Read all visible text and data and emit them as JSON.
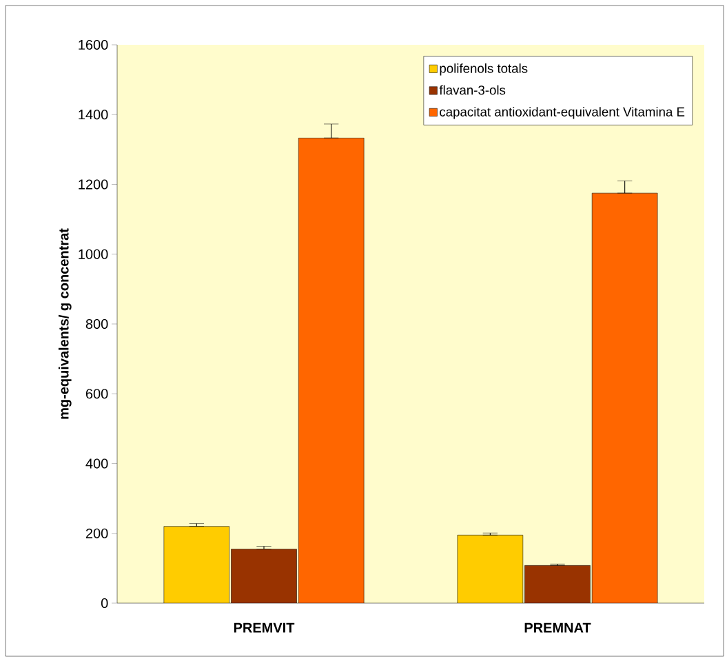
{
  "chart_data": {
    "type": "bar",
    "ylabel": "mg-equivalents/ g concentrat",
    "categories": [
      "PREMVIT",
      "PREMNAT"
    ],
    "series": [
      {
        "name": "polifenols totals",
        "color": "#ffcc00",
        "values": [
          220,
          195
        ],
        "errors": [
          [
            220,
            228
          ],
          [
            195,
            201
          ]
        ]
      },
      {
        "name": "flavan-3-ols",
        "color": "#993300",
        "values": [
          155,
          108
        ],
        "errors": [
          [
            155,
            163
          ],
          [
            108,
            112
          ]
        ]
      },
      {
        "name": "capacitat antioxidant-equivalent Vitamina E",
        "color": "#ff6600",
        "values": [
          1333,
          1175
        ],
        "errors": [
          [
            1333,
            1373
          ],
          [
            1175,
            1210
          ]
        ]
      }
    ],
    "ylim": [
      0,
      1600
    ],
    "yticks": [
      0,
      200,
      400,
      600,
      800,
      1000,
      1200,
      1400,
      1600
    ],
    "legend": "top right",
    "grid": false
  }
}
